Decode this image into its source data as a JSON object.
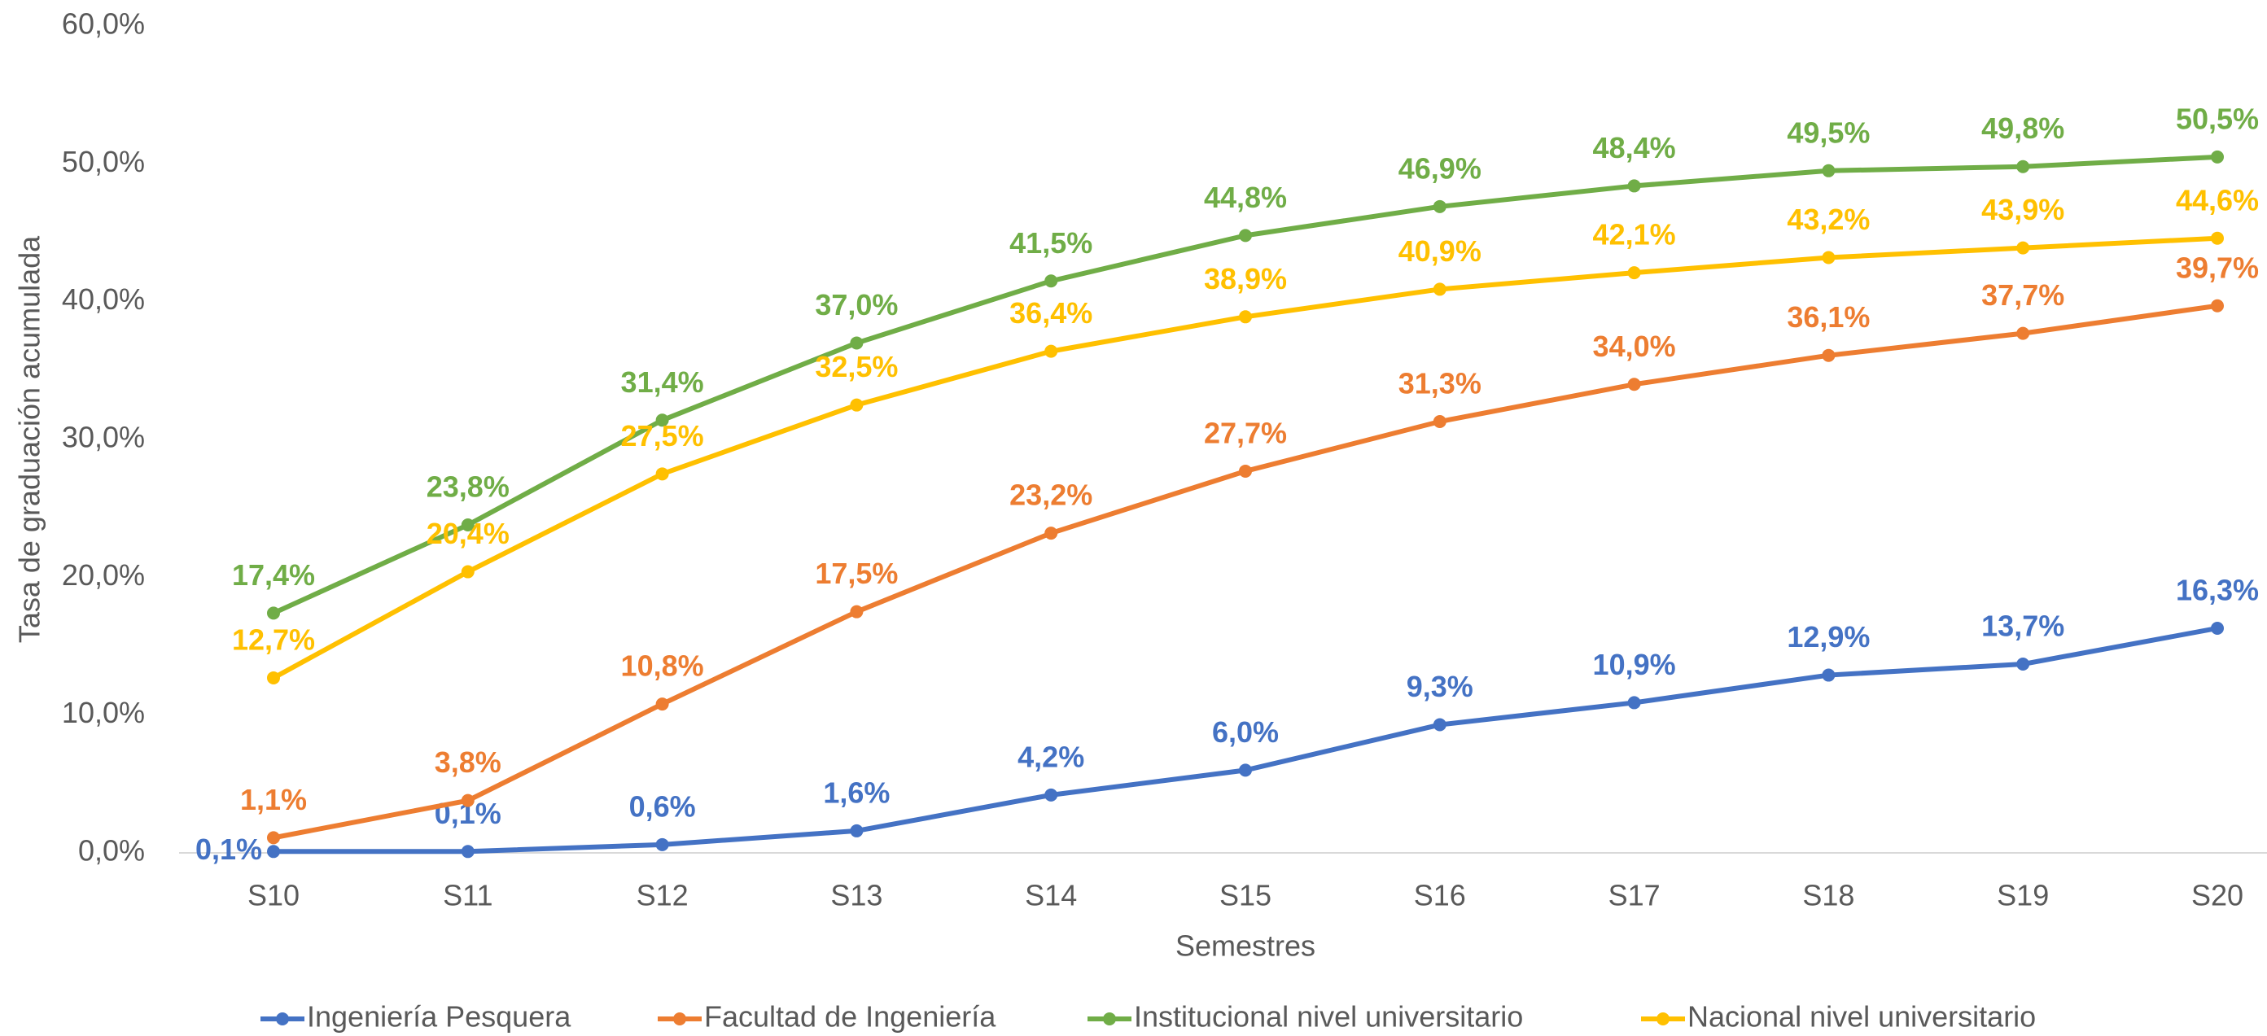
{
  "chart_data": {
    "type": "line",
    "x_label": "Semestres",
    "y_label": "Tasa de graduación acumulada",
    "categories": [
      "S10",
      "S11",
      "S12",
      "S13",
      "S14",
      "S15",
      "S16",
      "S17",
      "S18",
      "S19",
      "S20"
    ],
    "series": [
      {
        "name": "Ingeniería Pesquera",
        "color": "#4472c4",
        "values": [
          0.1,
          0.1,
          0.6,
          1.6,
          4.2,
          6.0,
          9.3,
          10.9,
          12.9,
          13.7,
          16.3
        ],
        "value_labels": [
          "0,1%",
          "0,1%",
          "0,6%",
          "1,6%",
          "4,2%",
          "6,0%",
          "9,3%",
          "10,9%",
          "12,9%",
          "13,7%",
          "16,3%"
        ]
      },
      {
        "name": "Facultad de Ingeniería",
        "color": "#ed7d31",
        "values": [
          1.1,
          3.8,
          10.8,
          17.5,
          23.2,
          27.7,
          31.3,
          34.0,
          36.1,
          37.7,
          39.7
        ],
        "value_labels": [
          "1,1%",
          "3,8%",
          "10,8%",
          "17,5%",
          "23,2%",
          "27,7%",
          "31,3%",
          "34,0%",
          "36,1%",
          "37,7%",
          "39,7%"
        ]
      },
      {
        "name": "Institucional nivel universitario",
        "color": "#70ad47",
        "values": [
          17.4,
          23.8,
          31.4,
          37.0,
          41.5,
          44.8,
          46.9,
          48.4,
          49.5,
          49.8,
          50.5
        ],
        "value_labels": [
          "17,4%",
          "23,8%",
          "31,4%",
          "37,0%",
          "41,5%",
          "44,8%",
          "46,9%",
          "48,4%",
          "49,5%",
          "49,8%",
          "50,5%"
        ]
      },
      {
        "name": "Nacional nivel universitario",
        "color": "#ffc000",
        "values": [
          12.7,
          20.4,
          27.5,
          32.5,
          36.4,
          38.9,
          40.9,
          42.1,
          43.2,
          43.9,
          44.6
        ],
        "value_labels": [
          "12,7%",
          "20,4%",
          "27,5%",
          "32,5%",
          "36,4%",
          "38,9%",
          "40,9%",
          "42,1%",
          "43,2%",
          "43,9%",
          "44,6%"
        ]
      }
    ],
    "ylim": [
      0,
      60
    ],
    "yticks": [
      {
        "value": 0,
        "label": "0,0%"
      },
      {
        "value": 10,
        "label": "10,0%"
      },
      {
        "value": 20,
        "label": "20,0%"
      },
      {
        "value": 30,
        "label": "30,0%"
      },
      {
        "value": 40,
        "label": "40,0%"
      },
      {
        "value": 50,
        "label": "50,0%"
      },
      {
        "value": 60,
        "label": "60,0%"
      }
    ],
    "grid": false,
    "legend": "bottom"
  }
}
